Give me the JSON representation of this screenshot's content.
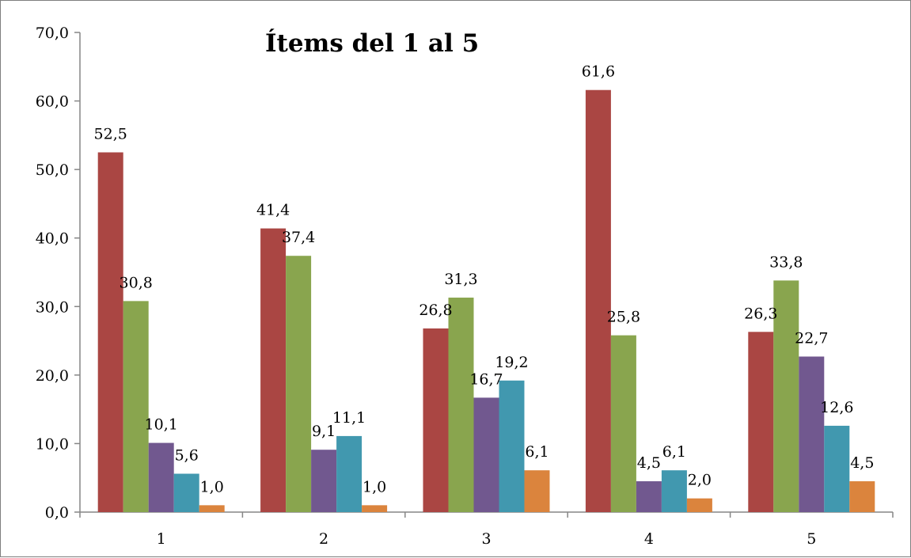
{
  "chart_data": {
    "type": "bar",
    "title": "Ítems  del 1 al 5",
    "xlabel": "",
    "ylabel": "",
    "categories": [
      "1",
      "2",
      "3",
      "4",
      "5"
    ],
    "ylim": [
      0,
      70
    ],
    "yticks": [
      0,
      10,
      20,
      30,
      40,
      50,
      60,
      70
    ],
    "ytick_labels": [
      "0,0",
      "10,0",
      "20,0",
      "30,0",
      "40,0",
      "50,0",
      "60,0",
      "70,0"
    ],
    "grid": false,
    "legend": "none",
    "series": [
      {
        "color": "#aa4643",
        "values": [
          52.5,
          41.4,
          26.8,
          61.6,
          26.3
        ],
        "labels": [
          "52,5",
          "41,4",
          "26,8",
          "61,6",
          "26,3"
        ]
      },
      {
        "color": "#89a54e",
        "values": [
          30.8,
          37.4,
          31.3,
          25.8,
          33.8
        ],
        "labels": [
          "30,8",
          "37,4",
          "31,3",
          "25,8",
          "33,8"
        ]
      },
      {
        "color": "#71588f",
        "values": [
          10.1,
          9.1,
          16.7,
          4.5,
          22.7
        ],
        "labels": [
          "10,1",
          "9,1",
          "16,7",
          "4,5",
          "22,7"
        ]
      },
      {
        "color": "#4198af",
        "values": [
          5.6,
          11.1,
          19.2,
          6.1,
          12.6
        ],
        "labels": [
          "5,6",
          "11,1",
          "19,2",
          "6,1",
          "12,6"
        ]
      },
      {
        "color": "#db843d",
        "values": [
          1.0,
          1.0,
          6.1,
          2.0,
          4.5
        ],
        "labels": [
          "1,0",
          "1,0",
          "6,1",
          "2,0",
          "4,5"
        ]
      }
    ]
  }
}
